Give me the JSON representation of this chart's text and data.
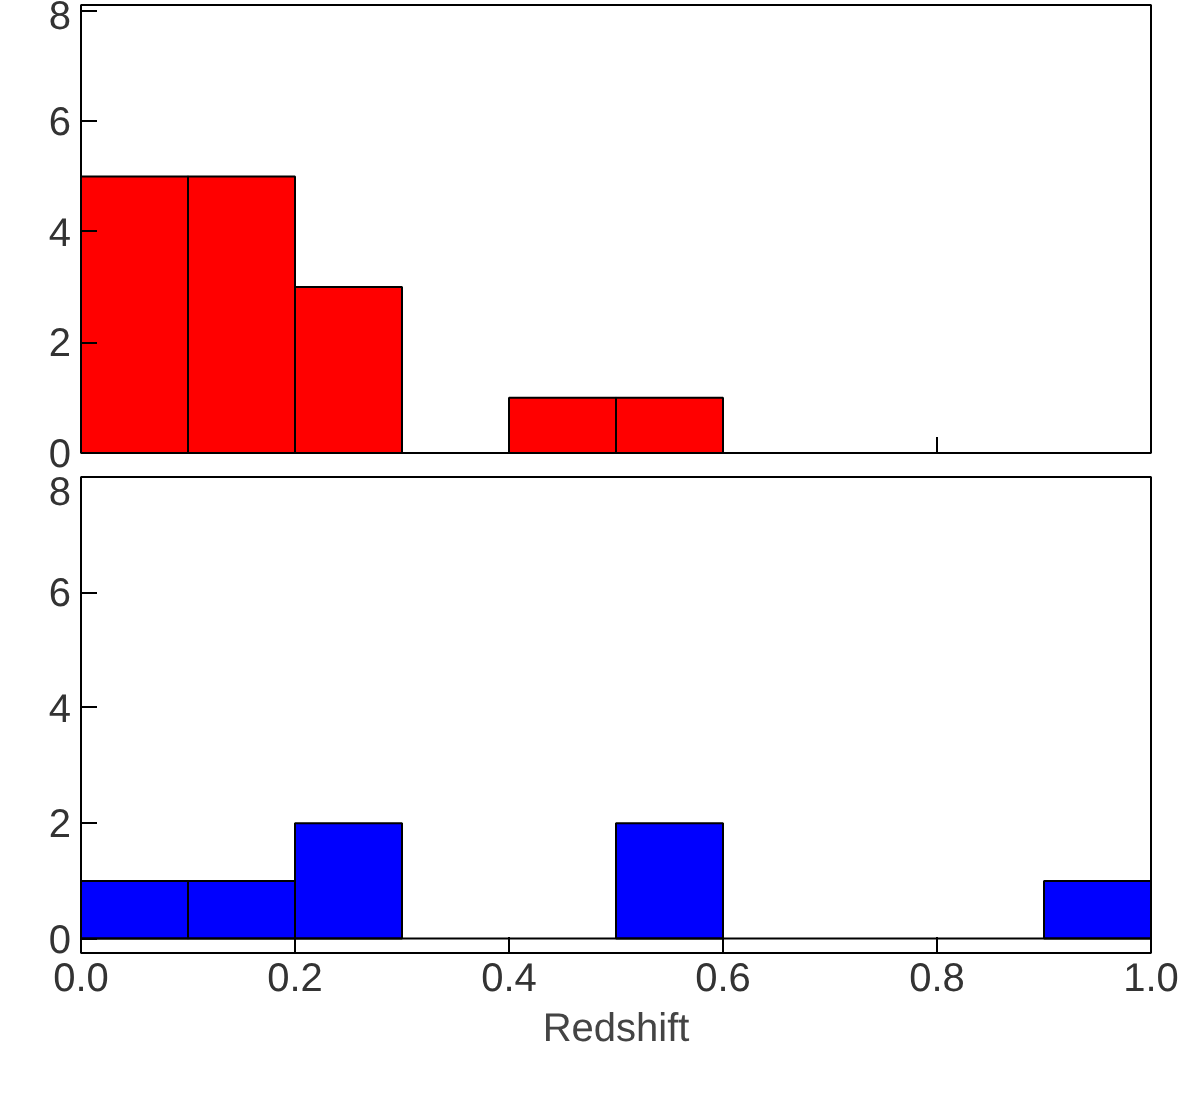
{
  "chart_data": [
    {
      "type": "histogram",
      "bins": [
        0.0,
        0.1,
        0.2,
        0.3,
        0.4,
        0.5,
        0.6,
        0.7,
        0.8,
        0.9,
        1.0
      ],
      "values": [
        5,
        5,
        3,
        0,
        1,
        1,
        0,
        0,
        0,
        0
      ],
      "color": "#ff0000",
      "xlim": [
        0.0,
        1.0
      ],
      "xticks": [
        0.0,
        0.2,
        0.4,
        0.6,
        0.8,
        1.0
      ],
      "ylim": [
        0,
        8.1
      ],
      "yticks": [
        0,
        2,
        4,
        6,
        8
      ],
      "tick_labels": "y",
      "grid": false,
      "legend": false
    },
    {
      "type": "histogram",
      "bins": [
        0.0,
        0.1,
        0.2,
        0.3,
        0.4,
        0.5,
        0.6,
        0.7,
        0.8,
        0.9,
        1.0
      ],
      "values": [
        1,
        1,
        2,
        0,
        0,
        2,
        0,
        0,
        0,
        1
      ],
      "color": "#0000ff",
      "xlim": [
        0.0,
        1.0
      ],
      "xticks": [
        {
          "value": 0.0,
          "label": "0.0"
        },
        0.2,
        0.4,
        0.6,
        0.8,
        {
          "value": 1.0,
          "label": "1.0"
        }
      ],
      "ylim": [
        -0.25,
        8
      ],
      "yticks": [
        0,
        2,
        4,
        6,
        8
      ],
      "xlabel": "Redshift",
      "grid": false,
      "legend": false
    }
  ]
}
